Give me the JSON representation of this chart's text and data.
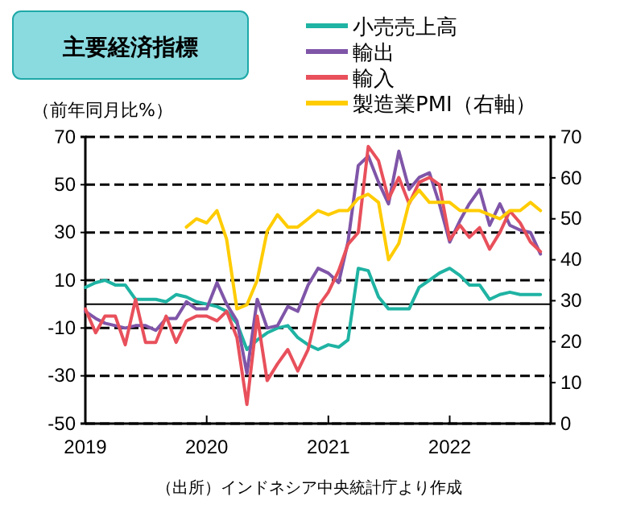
{
  "chart_data": {
    "type": "line",
    "title": "主要経済指標",
    "ylabel": "（前年同月比%）",
    "annotations": [
      "（出所）インドネシア中央統計庁より作成"
    ],
    "x": [
      "2019-01",
      "2019-02",
      "2019-03",
      "2019-04",
      "2019-05",
      "2019-06",
      "2019-07",
      "2019-08",
      "2019-09",
      "2019-10",
      "2019-11",
      "2019-12",
      "2020-01",
      "2020-02",
      "2020-03",
      "2020-04",
      "2020-05",
      "2020-06",
      "2020-07",
      "2020-08",
      "2020-09",
      "2020-10",
      "2020-11",
      "2020-12",
      "2021-01",
      "2021-02",
      "2021-03",
      "2021-04",
      "2021-05",
      "2021-06",
      "2021-07",
      "2021-08",
      "2021-09",
      "2021-10",
      "2021-11",
      "2021-12",
      "2022-01",
      "2022-02",
      "2022-03",
      "2022-04",
      "2022-05",
      "2022-06",
      "2022-07",
      "2022-08",
      "2022-09",
      "2022-10"
    ],
    "series": [
      {
        "name": "小売売上高",
        "color": "#1fb3a3",
        "values": [
          7,
          9,
          10,
          8,
          8,
          2,
          2,
          2,
          1,
          4,
          3,
          1,
          0,
          -1,
          -3,
          -8,
          -19,
          -15,
          -12,
          -10,
          -9,
          -14,
          -17,
          -19,
          -17,
          -18,
          -15,
          15,
          14,
          3,
          -2,
          -2,
          -2,
          7,
          10,
          13,
          15,
          12,
          8,
          8,
          2,
          4,
          5,
          4,
          4,
          4
        ]
      },
      {
        "name": "輸出",
        "color": "#7f55a8",
        "values": [
          -3,
          -6,
          -8,
          -9,
          -10,
          -9,
          -9,
          -11,
          -6,
          -6,
          1,
          -2,
          -2,
          9,
          0,
          -7,
          -29,
          2,
          -10,
          -9,
          -1,
          -3,
          8,
          15,
          13,
          9,
          26,
          58,
          62,
          51,
          42,
          64,
          48,
          53,
          55,
          42,
          26,
          35,
          42,
          48,
          33,
          42,
          33,
          31,
          30,
          21
        ]
      },
      {
        "name": "輸入",
        "color": "#e8505b",
        "values": [
          -2,
          -12,
          -5,
          -5,
          -17,
          2,
          -16,
          -16,
          -5,
          -16,
          -7,
          -5,
          -5,
          -7,
          -3,
          -14,
          -42,
          -5,
          -32,
          -25,
          -19,
          -28,
          -19,
          -1,
          5,
          14,
          25,
          30,
          66,
          60,
          44,
          53,
          42,
          51,
          53,
          50,
          27,
          33,
          28,
          32,
          23,
          30,
          39,
          34,
          26,
          22
        ]
      },
      {
        "name": "製造業PMI（右軸）",
        "color": "#ffcc00",
        "axis": "y2",
        "values": [
          null,
          null,
          null,
          null,
          null,
          null,
          null,
          null,
          null,
          null,
          48,
          50,
          49,
          52,
          45,
          28,
          29,
          35,
          47,
          51,
          48,
          48,
          50,
          52,
          51,
          52,
          52,
          55,
          56,
          54,
          40,
          44,
          54,
          57,
          54,
          54,
          54,
          52,
          52,
          52,
          51,
          50,
          52,
          52,
          54,
          52
        ]
      }
    ],
    "xlim": [
      "2019-01",
      "2022-11"
    ],
    "xticks": [
      {
        "value": "2019-01",
        "label": "2019"
      },
      {
        "value": "2020-01",
        "label": "2020"
      },
      {
        "value": "2021-01",
        "label": "2021"
      },
      {
        "value": "2022-01",
        "label": "2022"
      }
    ],
    "ylim": [
      -50,
      70
    ],
    "yticks": [
      -50,
      -30,
      -10,
      10,
      30,
      50,
      70
    ],
    "y2lim": [
      0,
      70
    ],
    "y2ticks": [
      0,
      10,
      20,
      30,
      40,
      50,
      60,
      70
    ],
    "ref_lines": [
      {
        "axis": "y",
        "value": 0,
        "color": "#000000"
      }
    ],
    "grid": "y",
    "legend": "top right",
    "line_style": "solid",
    "marker": "none"
  }
}
